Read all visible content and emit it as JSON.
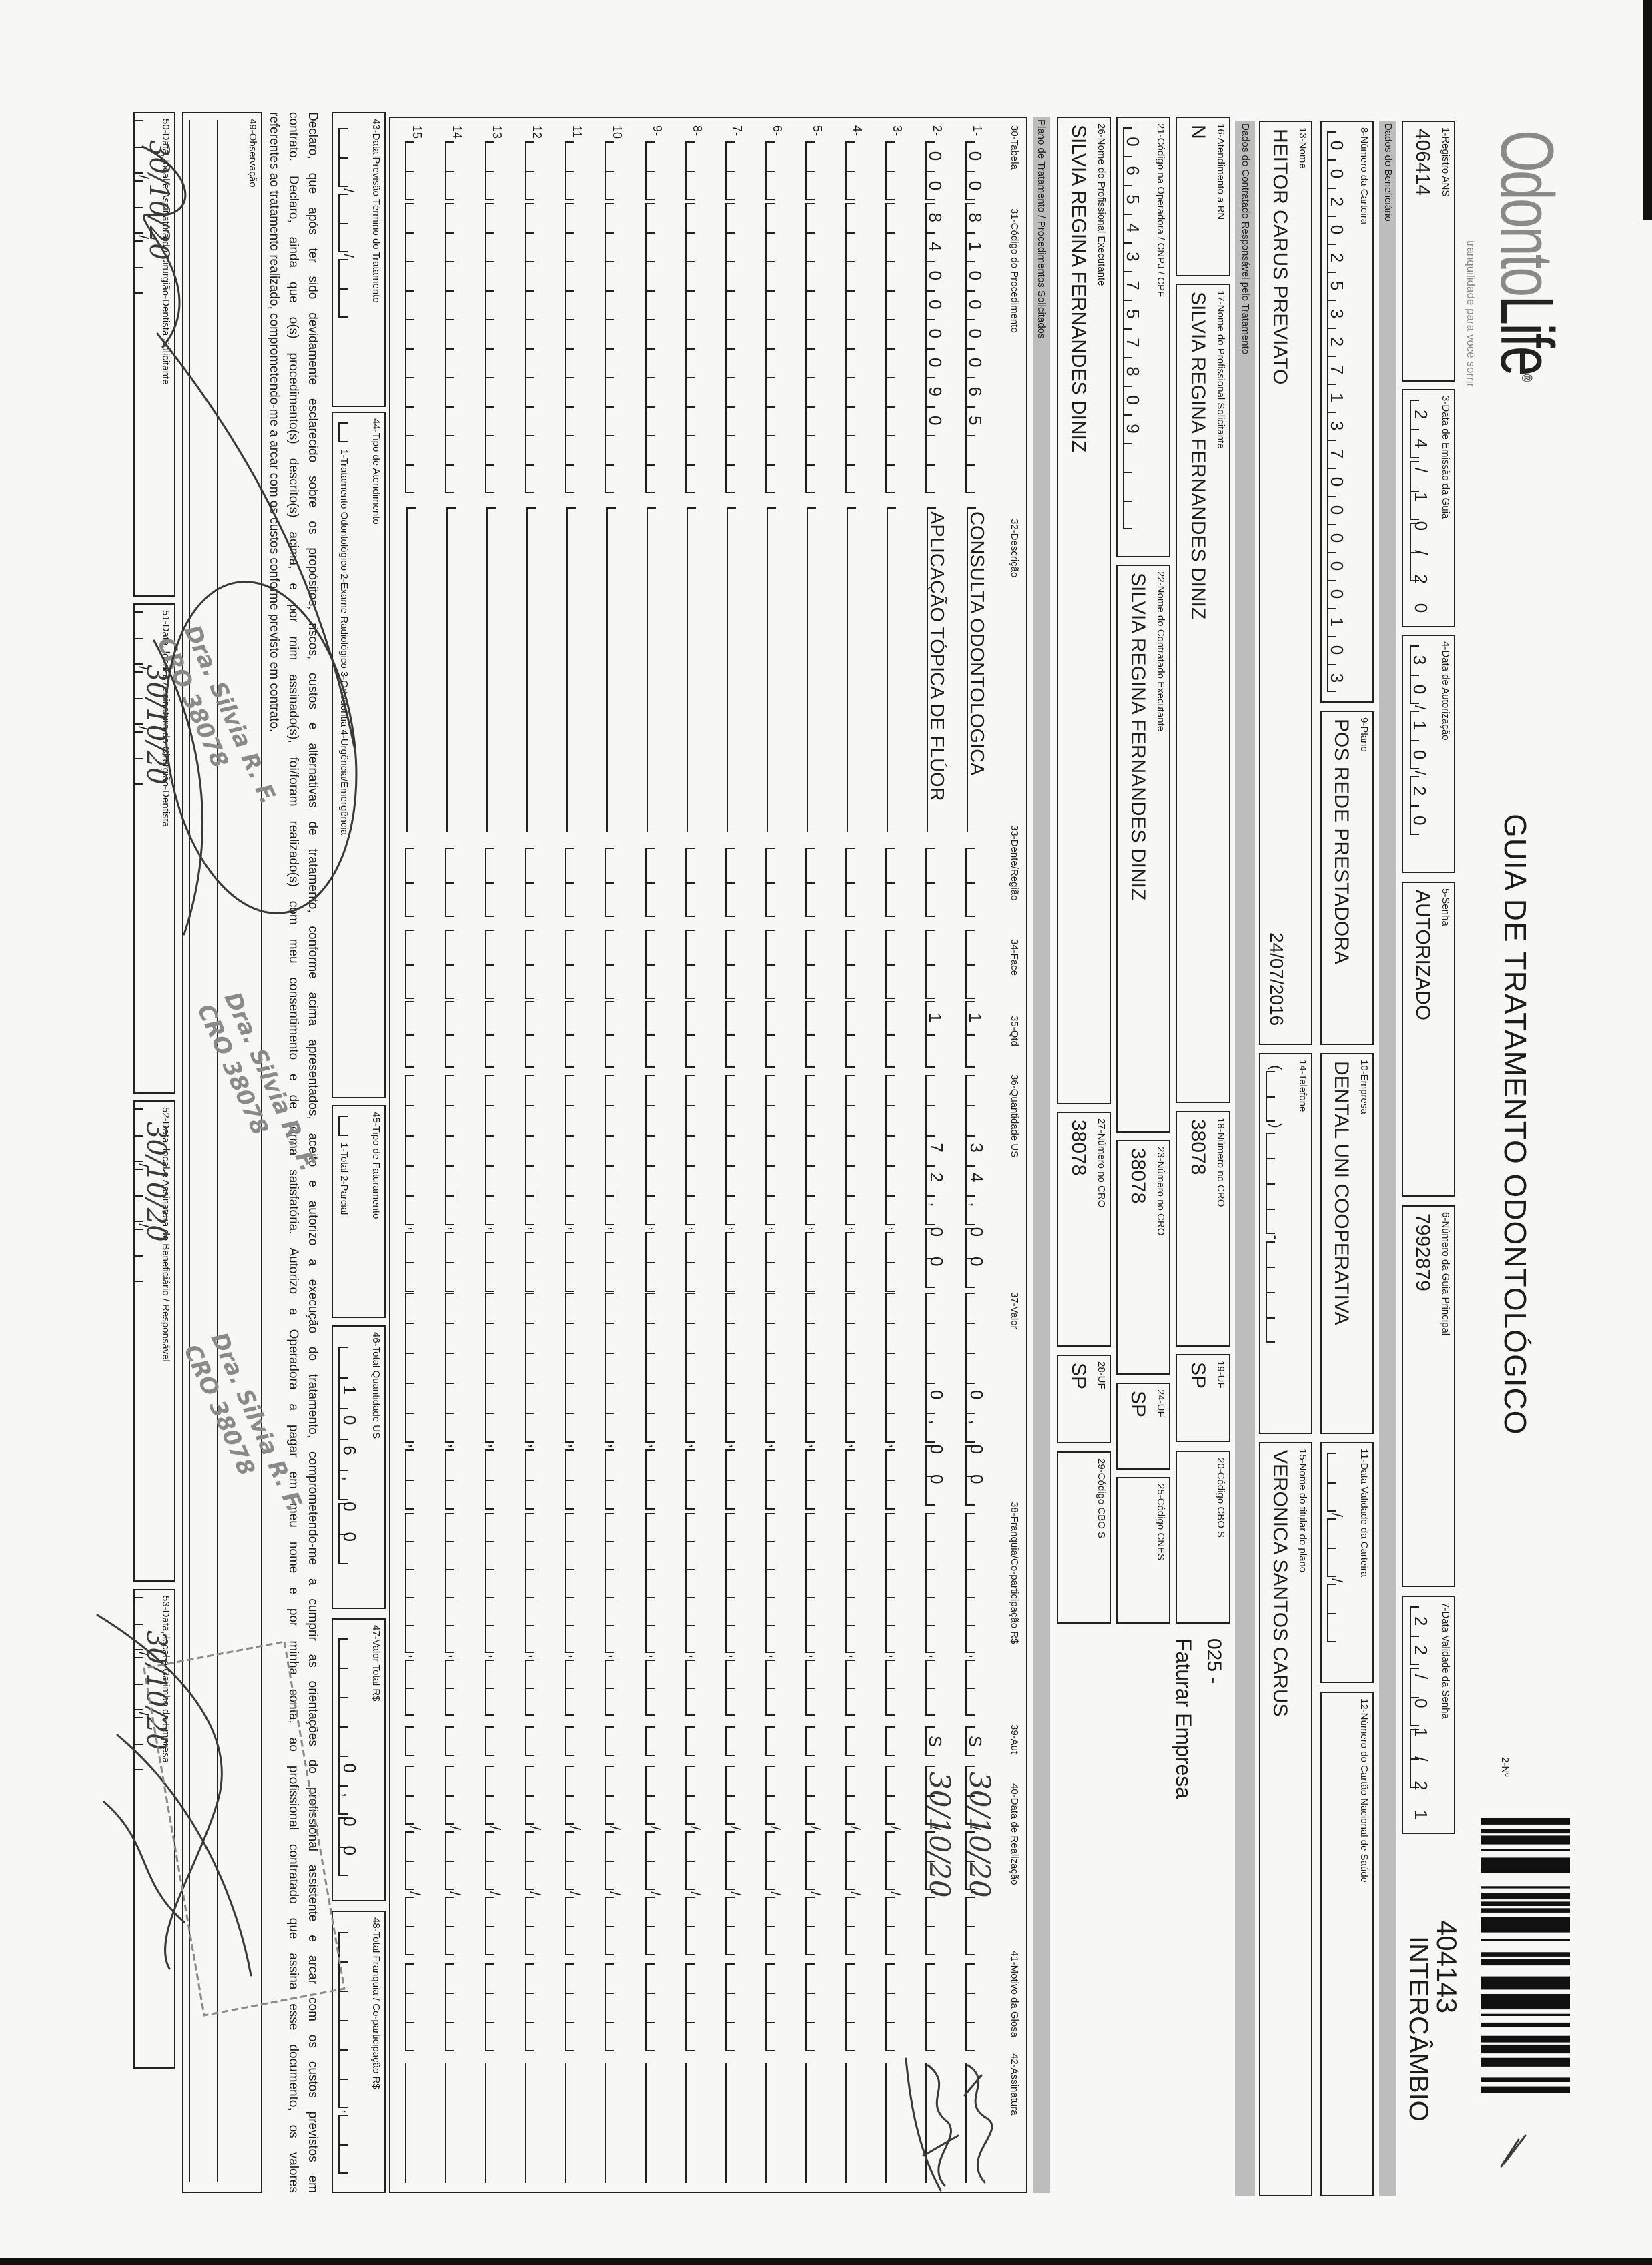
{
  "header": {
    "logo": {
      "part1": "Odonto",
      "part2": "Life",
      "registered": "®",
      "tagline": "tranquilidade para você sorrir"
    },
    "title": "GUIA DE TRATAMENTO ODONTOLÓGICO",
    "guide_no_label": "2-Nº",
    "guide_number": "404143",
    "guide_type": "INTERCÂMBIO"
  },
  "sections": {
    "beneficiary": "Dados do Beneficiário",
    "contractor": "Dados do Contratado Responsável pelo Tratamento",
    "plan": "Plano de Tratamento / Procedimentos Solicitados"
  },
  "fields": {
    "registro_ans": {
      "label": "1-Registro ANS",
      "value": "406414"
    },
    "data_emissao": {
      "label": "3-Data de Emissão da Guia",
      "value": "24/10/20"
    },
    "data_autorizacao": {
      "label": "4-Data de Autorização",
      "value": "30/10/20"
    },
    "senha": {
      "label": "5-Senha",
      "value": "AUTORIZADO"
    },
    "guia_principal": {
      "label": "6-Número da Guia Principal",
      "value": "7992879"
    },
    "validade_senha": {
      "label": "7-Data Validade da Senha",
      "value": "22/01/21"
    },
    "carteira": {
      "label": "8-Número da Carteira",
      "value": "00202532713700000103"
    },
    "plano": {
      "label": "9-Plano",
      "value": "POS REDE PRESTADORA"
    },
    "empresa": {
      "label": "10-Empresa",
      "value": "DENTAL UNI COOPERATIVA"
    },
    "validade_carteira": {
      "label": "11-Data Validade da Carteira",
      "value": ""
    },
    "cartao_nacional": {
      "label": "12-Número do Cartão Nacional de Saúde",
      "value": ""
    },
    "nome": {
      "label": "13-Nome",
      "value": "HEITOR CARUS PREVIATO",
      "date": "24/07/2016"
    },
    "telefone": {
      "label": "14-Telefone",
      "value": ""
    },
    "titular": {
      "label": "15-Nome do titular do plano",
      "value": "VERONICA SANTOS CARUS"
    },
    "atendimento_rn": {
      "label": "16-Atendimento a RN",
      "value": "N"
    },
    "solicitante": {
      "label": "17-Nome do Profissional Solicitante",
      "value": "SILVIA REGINA FERNANDES DINIZ"
    },
    "cro_solicitante": {
      "label": "18-Número no CRO",
      "value": "38078"
    },
    "uf_solicitante": {
      "label": "19-UF",
      "value": "SP"
    },
    "cbo_solicitante": {
      "label": "20-Código CBO S",
      "value": ""
    },
    "codigo_operadora": {
      "label": "21-Código na Operadora / CNPJ / CPF",
      "value": "06543757809"
    },
    "contratado": {
      "label": "22-Nome do Contratado Executante",
      "value": "SILVIA REGINA FERNANDES DINIZ"
    },
    "cro_contratado": {
      "label": "23-Número no CRO",
      "value": "38078"
    },
    "uf_contratado": {
      "label": "24-UF",
      "value": "SP"
    },
    "cnes": {
      "label": "25-Código CNES",
      "value": ""
    },
    "executante": {
      "label": "26-Nome do Profissional Executante",
      "value": "SILVIA REGINA FERNANDES DINIZ"
    },
    "cro_executante": {
      "label": "27-Número no CRO",
      "value": "38078"
    },
    "uf_executante": {
      "label": "28-UF",
      "value": "SP"
    },
    "cbo_executante": {
      "label": "29-Código CBO S",
      "value": ""
    }
  },
  "billing_note": {
    "code": "025 -",
    "text": "Faturar Empresa"
  },
  "table": {
    "headers": {
      "tabela": "30-Tabela",
      "codigo": "31-Código do Procedimento",
      "descricao": "32-Descrição",
      "dente": "33-Dente/Região",
      "face": "34-Face",
      "qtd": "35-Qtd",
      "qtd_us": "36-Quantidade US",
      "valor": "37-Valor",
      "franquia": "38-Franquia/Co-participação R$",
      "aut": "39-Aut",
      "data_realizacao": "40-Data de Realização",
      "motivo_glosa": "41-Motivo da Glosa",
      "assinatura": "42-Assinatura"
    },
    "rows": [
      {
        "num": "1-",
        "tabela": "00",
        "codigo": "81000065",
        "descricao": "CONSULTA ODONTOLOGICA",
        "dente": "",
        "face": "",
        "qtd": "1",
        "qtd_us": "34,00",
        "valor": "0,00",
        "franquia": "",
        "aut": "S",
        "data_realizacao": "30/10/20",
        "motivo_glosa": "",
        "signed": true
      },
      {
        "num": "2-",
        "tabela": "00",
        "codigo": "84000090",
        "descricao": "APLICAÇÃO TÓPICA DE FLÚOR",
        "dente": "",
        "face": "",
        "qtd": "1",
        "qtd_us": "72,00",
        "valor": "0,00",
        "franquia": "",
        "aut": "S",
        "data_realizacao": "30/10/20",
        "motivo_glosa": "",
        "signed": true
      },
      {
        "num": "3-"
      },
      {
        "num": "4-"
      },
      {
        "num": "5-"
      },
      {
        "num": "6-"
      },
      {
        "num": "7-"
      },
      {
        "num": "8-"
      },
      {
        "num": "9-"
      },
      {
        "num": "10"
      },
      {
        "num": "11"
      },
      {
        "num": "12"
      },
      {
        "num": "13"
      },
      {
        "num": "14"
      },
      {
        "num": "15"
      }
    ]
  },
  "footer": {
    "previsao_termino": {
      "label": "43-Data Previsão Término do Tratamento",
      "value": ""
    },
    "tipo_atendimento": {
      "label": "44-Tipo de Atendimento",
      "value": "",
      "options": "1-Tratamento Odontológico  2-Exame Radiológico  3-Ortodontia  4-Urgência/Emergência"
    },
    "tipo_faturamento": {
      "label": "45-Tipo de Faturamento",
      "value": "",
      "options": "1-Total  2-Parcial"
    },
    "total_qtd_us": {
      "label": "46-Total Quantidade US",
      "value": "106,00"
    },
    "valor_total": {
      "label": "47-Valor Total R$",
      "value": "0,00"
    },
    "total_franquia": {
      "label": "48-Total Franquia / Co-participação R$",
      "value": ""
    }
  },
  "declaration": [
    "Declaro, que após ter sido devidamente esclarecido sobre os propósitos, riscos, custos e alternativas de tratamento, conforme acima apresentados, aceito e autorizo a execução do tratamento, comprometendo-me a cumprir as orientações do profissional assistente e arcar com os custos previstos em",
    "contrato. Declaro, ainda que o(s) procedimento(s) descrito(s) acima, e por mim assinado(s), foi/foram realizado(s) com meu consentimento e de forma satisfatória. Autorizo a Operadora a pagar em meu nome e por minha conta, ao profissional contratado que assina esse documento, os valores",
    "referentes ao tratamento realizado, comprometendo-me a arcar com os custos conforme previsto em contrato."
  ],
  "observacao": {
    "label": "49-Observação",
    "value": ""
  },
  "signature_boxes": [
    {
      "label": "50-Data, local e Assinatura do Cirurgião-Dentista Solicitante",
      "handwritten_date": "30/10/20"
    },
    {
      "label": "51-Data, local e Assinatura do Cirurgião-Dentista",
      "handwritten_date": "30/10/20"
    },
    {
      "label": "52-Data, local e Assinatura do Beneficiário / Responsável",
      "handwritten_date": "30/10/20"
    },
    {
      "label": "53-Data, local e Carimbo da Empresa",
      "handwritten_date": "30/10/20"
    }
  ],
  "stamps": {
    "name": "Dra. Silvia R. F.",
    "cro": "CRO 38078"
  },
  "colors": {
    "ink": "#1c1c1c",
    "band": "#bdbdbd",
    "stamp": "#8a8a8a",
    "paper": "#f7f7f5"
  }
}
